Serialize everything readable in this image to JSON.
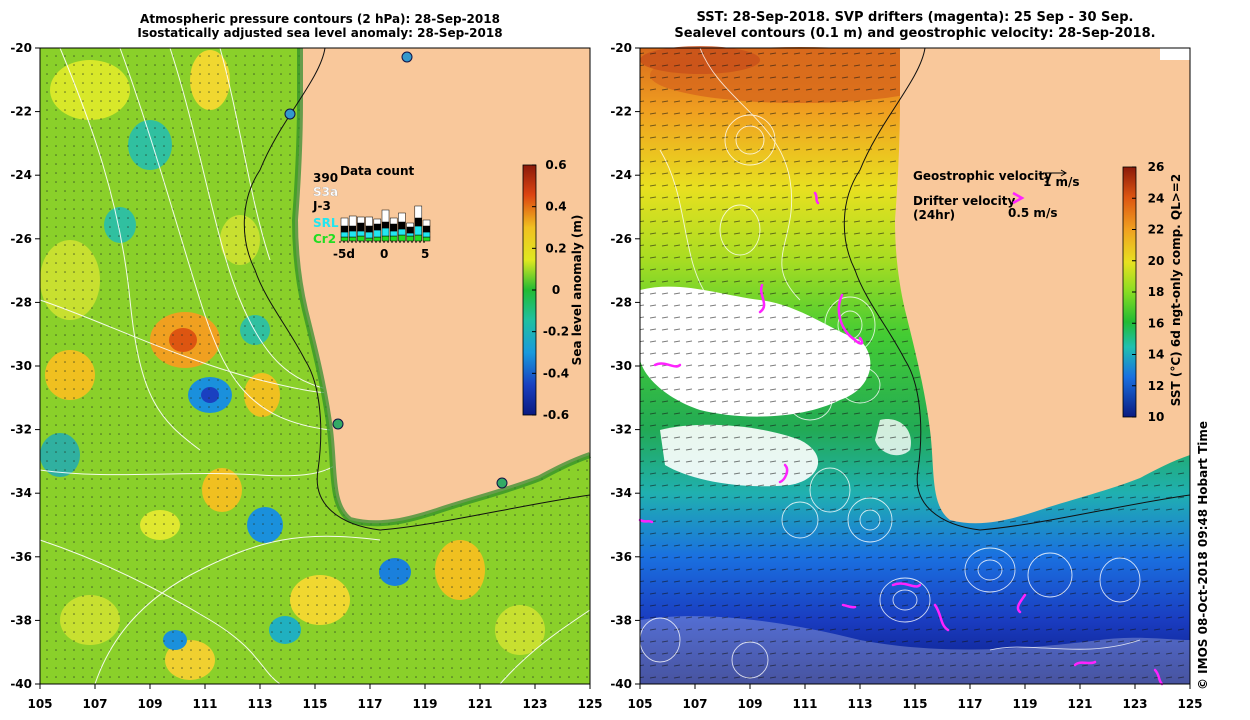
{
  "left_panel": {
    "title_line1": "Atmospheric pressure contours (2 hPa): 28-Sep-2018",
    "title_line2": "Isostatically adjusted sea level anomaly: 28-Sep-2018",
    "colorbar_label": "Sea level anomaly (m)",
    "colorbar_ticks": [
      "0.6",
      "0.4",
      "0.2",
      "0",
      "-0.2",
      "-0.4",
      "-0.6"
    ],
    "inset": {
      "title": "Data count",
      "count": "390",
      "satellites": [
        {
          "name": "S3a",
          "color": "#ffffff"
        },
        {
          "name": "J-3",
          "color": "#000000"
        },
        {
          "name": "SRL",
          "color": "#22e6f0"
        },
        {
          "name": "Cr2",
          "color": "#22dd22"
        }
      ],
      "xticks": [
        "-5d",
        "0",
        "5"
      ]
    }
  },
  "right_panel": {
    "title_line1": "SST: 28-Sep-2018. SVP drifters (magenta): 25 Sep - 30 Sep.",
    "title_line2": "Sealevel contours (0.1 m) and geostrophic velocity: 28-Sep-2018.",
    "geo_velocity_label": "Geostrophic velocity",
    "geo_velocity_scale": "1 m/s",
    "drifter_label_1": "Drifter velocity",
    "drifter_label_2": "(24hr)",
    "drifter_scale": "0.5 m/s",
    "colorbar_label": "SST (°C) 6d ngt-only comp. QL>=2",
    "colorbar_ticks": [
      "26",
      "24",
      "22",
      "20",
      "18",
      "16",
      "14",
      "12",
      "10"
    ]
  },
  "y_axis_ticks": [
    "-20",
    "-22",
    "-24",
    "-26",
    "-28",
    "-30",
    "-32",
    "-34",
    "-36",
    "-38",
    "-40"
  ],
  "x_axis_ticks": [
    "105",
    "107",
    "109",
    "111",
    "113",
    "115",
    "117",
    "119",
    "121",
    "123",
    "125"
  ],
  "credit": "© IMOS 08-Oct-2018 09:48 Hobart Time",
  "colors": {
    "land": "#f9c89b",
    "sla_low": "#0a2a8c",
    "sla_mid": "#22bb33",
    "sla_high": "#cc3311",
    "sst_warm": "#c8501a",
    "sst_cool": "#0a1a8c",
    "drifter": "#ff22ff"
  }
}
